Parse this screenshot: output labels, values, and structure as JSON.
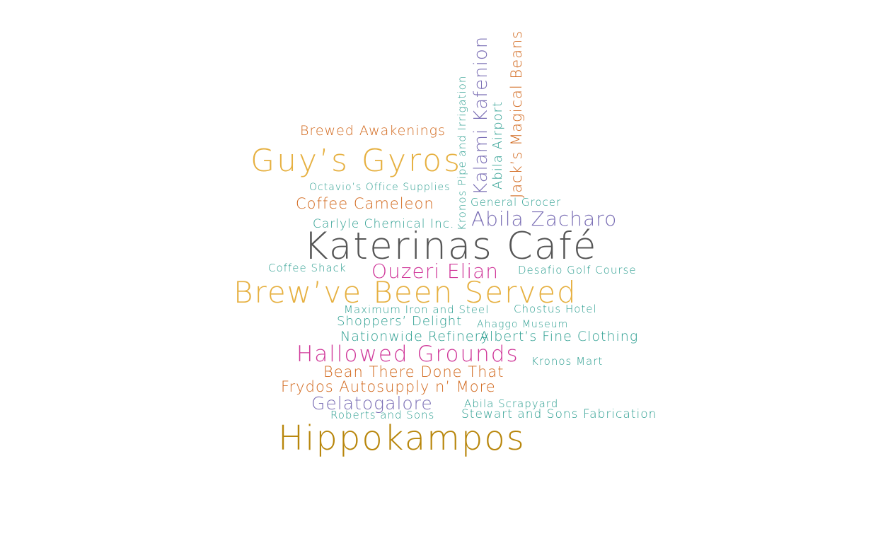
{
  "colors": {
    "orange": "#d2691e",
    "gold": "#e6b040",
    "teal": "#2a9d8f",
    "purple": "#7b6fb5",
    "magenta": "#d0399a",
    "gray": "#555555",
    "bronze": "#b8860b"
  },
  "words": {
    "katerinas": {
      "text": "Katerinas Café",
      "color": "#555555"
    },
    "brewve": {
      "text": "Brew’ve Been Served",
      "color": "#e6b040"
    },
    "hippokampos": {
      "text": "Hippokampos",
      "color": "#b8860b"
    },
    "guys": {
      "text": "Guy’s Gyros",
      "color": "#e6b040"
    },
    "hallowed": {
      "text": "Hallowed Grounds",
      "color": "#d0399a"
    },
    "ouzeri": {
      "text": "Ouzeri Elian",
      "color": "#d0399a"
    },
    "zacharo": {
      "text": "Abila Zacharo",
      "color": "#7b6fb5"
    },
    "kalami": {
      "text": "Kalami Kafenion",
      "color": "#7b6fb5"
    },
    "jacks": {
      "text": "Jack’s Magical Beans",
      "color": "#d2691e"
    },
    "gelato": {
      "text": "Gelatogalore",
      "color": "#7b6fb5"
    },
    "bean": {
      "text": "Bean There Done That",
      "color": "#d2691e"
    },
    "frydos": {
      "text": "Frydos Autosupply n’ More",
      "color": "#d2691e"
    },
    "cameleon": {
      "text": "Coffee Cameleon",
      "color": "#d2691e"
    },
    "brewed": {
      "text": "Brewed Awakenings",
      "color": "#d2691e"
    },
    "airport": {
      "text": "Abila Airport",
      "color": "#2a9d8f"
    },
    "kronospipe": {
      "text": "Kronos Pipe and Irrigation",
      "color": "#2a9d8f"
    },
    "octavio": {
      "text": "Octavio’s Office Supplies",
      "color": "#2a9d8f"
    },
    "grocer": {
      "text": "General Grocer",
      "color": "#2a9d8f"
    },
    "carlyle": {
      "text": "Carlyle Chemical Inc.",
      "color": "#2a9d8f"
    },
    "shack": {
      "text": "Coffee Shack",
      "color": "#2a9d8f"
    },
    "desafio": {
      "text": "Desafio Golf Course",
      "color": "#2a9d8f"
    },
    "maximum": {
      "text": "Maximum Iron and Steel",
      "color": "#2a9d8f"
    },
    "chostus": {
      "text": "Chostus Hotel",
      "color": "#2a9d8f"
    },
    "shoppers": {
      "text": "Shoppers’ Delight",
      "color": "#2a9d8f"
    },
    "ahaggo": {
      "text": "Ahaggo Museum",
      "color": "#2a9d8f"
    },
    "nationwide": {
      "text": "Nationwide Refinery",
      "color": "#2a9d8f"
    },
    "alberts": {
      "text": "Albert’s Fine Clothing",
      "color": "#2a9d8f"
    },
    "kronosmart": {
      "text": "Kronos Mart",
      "color": "#2a9d8f"
    },
    "scrapyard": {
      "text": "Abila Scrapyard",
      "color": "#2a9d8f"
    },
    "roberts": {
      "text": "Roberts and Sons",
      "color": "#2a9d8f"
    },
    "stewart": {
      "text": "Stewart and Sons Fabrication",
      "color": "#2a9d8f"
    }
  }
}
